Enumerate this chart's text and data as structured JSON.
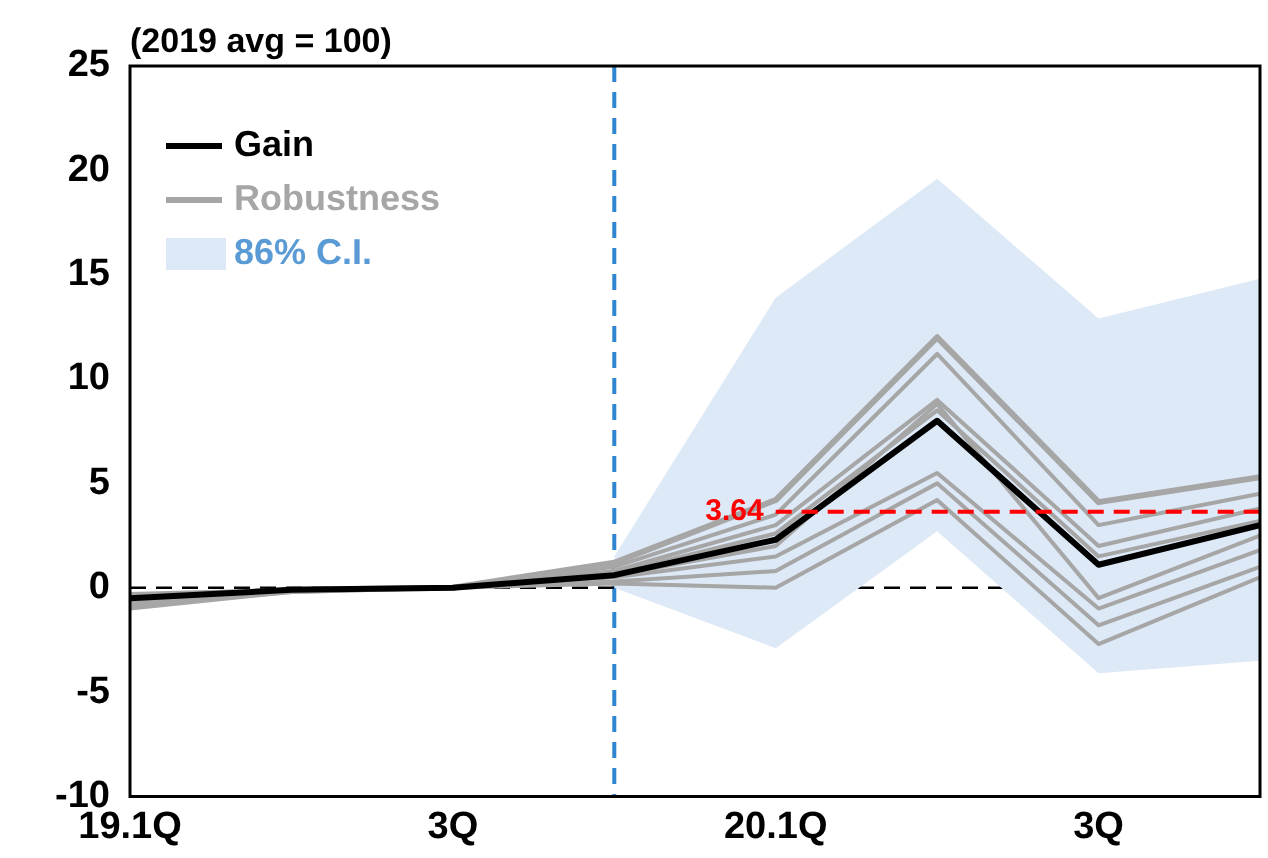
{
  "chart_data": {
    "type": "line",
    "title": "(2019 avg = 100)",
    "categories": [
      "19.1Q",
      null,
      "3Q",
      null,
      "20.1Q",
      null,
      "3Q",
      null
    ],
    "ylim": [
      -10,
      25
    ],
    "yticks": [
      -10,
      -5,
      0,
      5,
      10,
      15,
      20,
      25
    ],
    "grid": false,
    "legend": "top left",
    "marker": "none",
    "annotations": [
      "86% C.I."
    ],
    "series": [
      {
        "name": "Gain",
        "color": "#000000",
        "line_style": "solid",
        "values": [
          -0.5,
          -0.1,
          0,
          0.6,
          2.3,
          8.0,
          1.1,
          3.0
        ],
        "lower": [
          null,
          null,
          null,
          0,
          -2.9,
          2.7,
          -4.1,
          -3.5
        ],
        "upper": [
          null,
          null,
          null,
          1.5,
          13.9,
          19.6,
          12.9,
          14.8
        ]
      },
      {
        "name": "Robustness",
        "color": "#a6a6a6",
        "line_style": "solid",
        "values": [
          -0.8,
          -0.1,
          0,
          1.2,
          4.2,
          12.0,
          4.1,
          5.3
        ]
      },
      {
        "color": "#a6a6a6",
        "line_style": "solid",
        "values": [
          -0.6,
          -0.1,
          0,
          1.0,
          3.5,
          11.2,
          3.0,
          4.5
        ]
      },
      {
        "color": "#a6a6a6",
        "line_style": "solid",
        "values": [
          -0.4,
          -0.1,
          0,
          0.8,
          3.0,
          9.0,
          2.0,
          3.8
        ]
      },
      {
        "color": "#a6a6a6",
        "line_style": "solid",
        "values": [
          -1.0,
          -0.2,
          0,
          0.7,
          2.6,
          8.5,
          1.5,
          3.2
        ]
      },
      {
        "color": "#a6a6a6",
        "line_style": "solid",
        "values": [
          -0.5,
          -0.1,
          0,
          0.6,
          2.0,
          8.8,
          -0.5,
          2.5
        ]
      },
      {
        "color": "#a6a6a6",
        "line_style": "solid",
        "values": [
          -0.7,
          -0.1,
          0,
          0.5,
          1.5,
          5.5,
          -1.0,
          1.8
        ]
      },
      {
        "color": "#a6a6a6",
        "line_style": "solid",
        "values": [
          -0.3,
          -0.1,
          0,
          0.3,
          0.8,
          5.0,
          -1.8,
          1.0
        ]
      },
      {
        "color": "#a6a6a6",
        "line_style": "solid",
        "values": [
          -0.9,
          -0.2,
          0,
          0.2,
          0.0,
          4.2,
          -2.7,
          0.5
        ]
      },
      {
        "color": "#ff0000",
        "line_style": "dashed",
        "values": [
          null,
          null,
          null,
          null,
          3.64,
          3.64,
          3.64,
          3.64
        ],
        "value_labels": [
          null,
          null,
          null,
          null,
          "3.64",
          null,
          null,
          null
        ]
      }
    ],
    "ref_lines": [
      {
        "axis": "y",
        "value": 0,
        "color": "#000000",
        "line_style": "dashed"
      }
    ]
  }
}
